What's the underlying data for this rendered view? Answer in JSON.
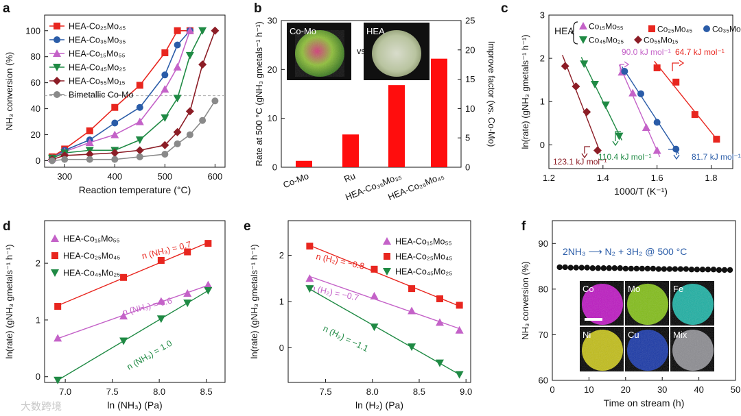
{
  "colors": {
    "red": "#e8261f",
    "blue": "#2a5ca8",
    "purple": "#c462c8",
    "green": "#1f8a44",
    "maroon": "#8c1d26",
    "gray": "#8a8a8a",
    "bar": "#ff0d0d"
  },
  "watermark": "大数跨境",
  "chart_data": [
    {
      "panel": "a",
      "type": "line",
      "xlabel": "Reaction temperature (°C)",
      "ylabel": "NH₃ conversion (%)",
      "xlim": [
        260,
        620
      ],
      "ylim": [
        -5,
        112
      ],
      "xticks": [
        "300",
        "400",
        "500",
        "600"
      ],
      "yticks": [
        "0",
        "20",
        "40",
        "60",
        "80",
        "100"
      ],
      "reference_line_y": 50,
      "legend_position": "top-left",
      "series": [
        {
          "name": "HEA-Co₂₅Mo₄₅",
          "color": "red",
          "marker": "square",
          "x": [
            275,
            300,
            350,
            400,
            450,
            500,
            525,
            550
          ],
          "y": [
            3,
            9,
            23,
            41,
            58,
            83,
            100,
            100
          ]
        },
        {
          "name": "HEA-Co₃₅Mo₃₅",
          "color": "blue",
          "marker": "circle",
          "x": [
            275,
            300,
            350,
            400,
            450,
            500,
            525,
            550
          ],
          "y": [
            2,
            8,
            16,
            29,
            41,
            66,
            89,
            100
          ]
        },
        {
          "name": "HEA-Co₁₅Mo₅₅",
          "color": "purple",
          "marker": "triangle-up",
          "x": [
            275,
            300,
            350,
            400,
            450,
            500,
            525,
            550
          ],
          "y": [
            2,
            7,
            14,
            20,
            30,
            55,
            72,
            100
          ]
        },
        {
          "name": "HEA-Co₄₅Mo₂₅",
          "color": "green",
          "marker": "triangle-down",
          "x": [
            275,
            300,
            350,
            400,
            450,
            500,
            525,
            550,
            575
          ],
          "y": [
            2,
            6,
            8,
            8,
            16,
            33,
            48,
            81,
            100
          ]
        },
        {
          "name": "HEA-Co₅₅Mo₁₅",
          "color": "maroon",
          "marker": "diamond",
          "x": [
            275,
            300,
            350,
            400,
            450,
            500,
            525,
            550,
            575,
            600
          ],
          "y": [
            1,
            4,
            5,
            6,
            8,
            12,
            22,
            38,
            74,
            100
          ]
        },
        {
          "name": "Bimetallic Co-Mo",
          "color": "gray",
          "marker": "circle",
          "x": [
            275,
            300,
            350,
            400,
            450,
            500,
            525,
            550,
            575,
            600
          ],
          "y": [
            0,
            1,
            1,
            1,
            3,
            5,
            13,
            20,
            31,
            46
          ]
        }
      ]
    },
    {
      "panel": "b",
      "type": "bar",
      "ylabel": "Rate at 500 °C (gNH₃ gmetals⁻¹ h⁻¹)",
      "y2label": "Improve factor (vs. Co-Mo)",
      "ylim": [
        0,
        30
      ],
      "y2lim": [
        0,
        25
      ],
      "yticks": [
        "0",
        "10",
        "20",
        "30"
      ],
      "y2ticks": [
        "0",
        "5",
        "10",
        "15",
        "20",
        "25"
      ],
      "categories": [
        "Co-Mo",
        "Ru",
        "HEA-Co₃₅Mo₃₅",
        "HEA-Co₂₅Mo₄₅"
      ],
      "values": [
        1.3,
        6.7,
        16.8,
        22.2
      ],
      "inset_labels": [
        "Co-Mo",
        "vs.",
        "HEA"
      ]
    },
    {
      "panel": "c",
      "type": "scatter",
      "xlabel": "1000/T (K⁻¹)",
      "ylabel": "ln(rate) (gNH₃ gmetals⁻¹ h⁻¹)",
      "xlim": [
        1.2,
        1.88
      ],
      "ylim": [
        -0.55,
        3.0
      ],
      "xticks": [
        "1.2",
        "1.4",
        "1.6",
        "1.8"
      ],
      "yticks": [
        "0",
        "1",
        "2",
        "3"
      ],
      "legend_group_label": "HEA",
      "series": [
        {
          "name": "Co₁₅Mo₅₅",
          "color": "purple",
          "marker": "triangle-up",
          "x": [
            1.47,
            1.51,
            1.56,
            1.6
          ],
          "y": [
            1.68,
            1.2,
            0.4,
            -0.13
          ],
          "annotation": "90.0 kJ mol⁻¹"
        },
        {
          "name": "Co₂₅Mo₄₅",
          "color": "red",
          "marker": "square",
          "x": [
            1.6,
            1.67,
            1.74,
            1.82
          ],
          "y": [
            1.78,
            1.45,
            0.7,
            0.13
          ],
          "annotation": "64.7 kJ mol⁻¹"
        },
        {
          "name": "Co₃₅Mo₃₅",
          "color": "blue",
          "marker": "circle",
          "x": [
            1.48,
            1.54,
            1.6,
            1.67
          ],
          "y": [
            1.7,
            1.18,
            0.52,
            -0.1
          ],
          "annotation": "81.7 kJ mol⁻¹"
        },
        {
          "name": "Co₄₅Mo₂₅",
          "color": "green",
          "marker": "triangle-down",
          "x": [
            1.33,
            1.37,
            1.41,
            1.46
          ],
          "y": [
            1.87,
            1.4,
            0.92,
            0.2
          ],
          "annotation": "110.4 kJ mol⁻¹"
        },
        {
          "name": "Co₅₅Mo₁₅",
          "color": "maroon",
          "marker": "diamond",
          "x": [
            1.26,
            1.3,
            1.34,
            1.38
          ],
          "y": [
            1.82,
            1.35,
            0.76,
            -0.13
          ],
          "annotation": "123.1 kJ mol⁻¹"
        }
      ]
    },
    {
      "panel": "d",
      "type": "scatter",
      "xlabel": "ln (NH₃) (Pa)",
      "ylabel": "ln(rate) (gNH₃ gmetals⁻¹ h⁻¹)",
      "xlim": [
        6.78,
        8.7
      ],
      "ylim": [
        -0.1,
        2.75
      ],
      "xticks": [
        "7.0",
        "7.5",
        "8.0",
        "8.5"
      ],
      "yticks": [
        "0",
        "1",
        "2"
      ],
      "series": [
        {
          "name": "HEA-Co₁₅Mo₅₅",
          "color": "purple",
          "marker": "triangle-up",
          "x": [
            6.92,
            7.62,
            8.02,
            8.3,
            8.52
          ],
          "y": [
            0.68,
            1.07,
            1.33,
            1.47,
            1.62
          ],
          "annotation": "n (NH₃) = 0.6"
        },
        {
          "name": "HEA-Co₂₅Mo₄₅",
          "color": "red",
          "marker": "square",
          "x": [
            6.92,
            7.62,
            8.02,
            8.3,
            8.52
          ],
          "y": [
            1.24,
            1.75,
            2.05,
            2.2,
            2.35
          ],
          "annotation": "n (NH₃) = 0.7"
        },
        {
          "name": "HEA-Co₄₅Mo₂₅",
          "color": "green",
          "marker": "triangle-down",
          "x": [
            6.92,
            7.62,
            8.02,
            8.3,
            8.52
          ],
          "y": [
            -0.06,
            0.63,
            1.02,
            1.3,
            1.52
          ],
          "annotation": "n (NH₃) = 1.0"
        }
      ]
    },
    {
      "panel": "e",
      "type": "scatter",
      "xlabel": "ln (H₂) (Pa)",
      "ylabel": "ln(rate) (gNH₃ gmetals⁻¹ h⁻¹)",
      "xlim": [
        7.1,
        9.05
      ],
      "ylim": [
        -0.75,
        2.75
      ],
      "xticks": [
        "7.5",
        "8.0",
        "8.5",
        "9.0"
      ],
      "yticks": [
        "0",
        "1",
        "2"
      ],
      "series": [
        {
          "name": "HEA-Co₁₅Mo₅₅",
          "color": "purple",
          "marker": "triangle-up",
          "x": [
            7.33,
            8.02,
            8.42,
            8.72,
            8.93
          ],
          "y": [
            1.5,
            1.12,
            0.8,
            0.55,
            0.38
          ],
          "annotation": "n (H₂) = −0.7"
        },
        {
          "name": "HEA-Co₂₅Mo₄₅",
          "color": "red",
          "marker": "square",
          "x": [
            7.33,
            8.02,
            8.42,
            8.72,
            8.93
          ],
          "y": [
            2.2,
            1.7,
            1.28,
            1.06,
            0.92
          ],
          "annotation": "n (H₂) = −0.8"
        },
        {
          "name": "HEA-Co₄₅Mo₂₅",
          "color": "green",
          "marker": "triangle-down",
          "x": [
            7.33,
            8.02,
            8.42,
            8.72,
            8.93
          ],
          "y": [
            1.28,
            0.45,
            0.02,
            -0.33,
            -0.58
          ],
          "annotation": "n (H₂) = −1.1"
        }
      ]
    },
    {
      "panel": "f",
      "type": "scatter",
      "xlabel": "Time on stream (h)",
      "ylabel": "NH₃ conversion (%)",
      "xlim": [
        0,
        50
      ],
      "ylim": [
        60,
        95
      ],
      "xticks": [
        "0",
        "10",
        "20",
        "30",
        "40",
        "50"
      ],
      "yticks": [
        "60",
        "70",
        "80",
        "90"
      ],
      "reaction": "2NH₃ ⟶ N₂ + 3H₂ @ 500 °C",
      "x": [
        2,
        3.5,
        5,
        6.5,
        8,
        9.5,
        11,
        12.5,
        14,
        15.5,
        17,
        18.5,
        20,
        21.5,
        23,
        24.5,
        26,
        27.5,
        29,
        30.5,
        32,
        33.5,
        35,
        36.5,
        38,
        39.5,
        41,
        42.5,
        44,
        45.5,
        47,
        48.5
      ],
      "y": [
        84.8,
        84.8,
        84.7,
        84.7,
        84.7,
        84.7,
        84.6,
        84.6,
        84.6,
        84.6,
        84.6,
        84.6,
        84.5,
        84.5,
        84.5,
        84.5,
        84.5,
        84.5,
        84.4,
        84.4,
        84.4,
        84.4,
        84.4,
        84.4,
        84.3,
        84.3,
        84.3,
        84.3,
        84.3,
        84.2,
        84.2,
        84.2
      ],
      "map_labels": [
        "Co",
        "Mo",
        "Fe",
        "Ni",
        "Cu",
        "Mix"
      ]
    }
  ]
}
